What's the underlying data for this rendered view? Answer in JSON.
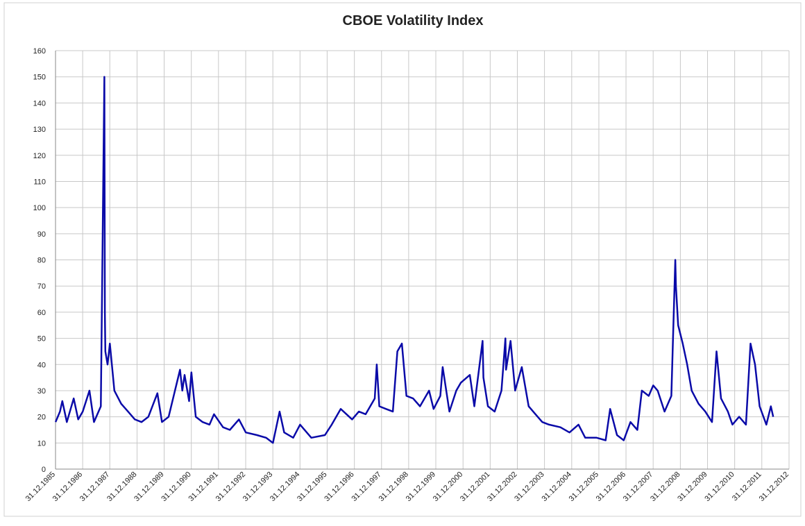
{
  "chart_data": {
    "type": "line",
    "title": "CBOE Volatility Index",
    "color": "#0a0aa8",
    "grid": true,
    "x": [
      "1986-01",
      "1986-03",
      "1986-04",
      "1986-06",
      "1986-09",
      "1986-11",
      "1987-01",
      "1987-04",
      "1987-06",
      "1987-09",
      "1987-10-19",
      "1987-10-25",
      "1987-11",
      "1987-12",
      "1988-01",
      "1988-03",
      "1988-06",
      "1988-09",
      "1988-12",
      "1989-03",
      "1989-06",
      "1989-10",
      "1989-12",
      "1990-03",
      "1990-08",
      "1990-09",
      "1990-10",
      "1990-12",
      "1991-01",
      "1991-03",
      "1991-06",
      "1991-09",
      "1991-11",
      "1992-03",
      "1992-06",
      "1992-10",
      "1993-01",
      "1993-06",
      "1993-10",
      "1994-01",
      "1994-04",
      "1994-06",
      "1994-10",
      "1995-01",
      "1995-06",
      "1995-12",
      "1996-03",
      "1996-07",
      "1996-12",
      "1997-03",
      "1997-06",
      "1997-10",
      "1997-10-28",
      "1997-12",
      "1998-03",
      "1998-06",
      "1998-08",
      "1998-10",
      "1998-12",
      "1999-03",
      "1999-06",
      "1999-10",
      "1999-12",
      "2000-03",
      "2000-04",
      "2000-07",
      "2000-10",
      "2000-12",
      "2001-04",
      "2001-06",
      "2001-09-20",
      "2001-10",
      "2001-12",
      "2002-03",
      "2002-06",
      "2002-07-24",
      "2002-08",
      "2002-10",
      "2002-12",
      "2003-03",
      "2003-06",
      "2003-09",
      "2003-12",
      "2004-03",
      "2004-08",
      "2004-12",
      "2005-04",
      "2005-07",
      "2005-12",
      "2006-04",
      "2006-06",
      "2006-09",
      "2006-12",
      "2007-03",
      "2007-06",
      "2007-08",
      "2007-11",
      "2008-01",
      "2008-03",
      "2008-06",
      "2008-09",
      "2008-10-24",
      "2008-11",
      "2008-12",
      "2009-02",
      "2009-04",
      "2009-06",
      "2009-09",
      "2009-12",
      "2010-03",
      "2010-05",
      "2010-07",
      "2010-10",
      "2010-12",
      "2011-03",
      "2011-06",
      "2011-08",
      "2011-10",
      "2011-12",
      "2012-03",
      "2012-05",
      "2012-06"
    ],
    "values": [
      18,
      22,
      26,
      18,
      27,
      19,
      22,
      30,
      18,
      24,
      150,
      60,
      45,
      40,
      48,
      30,
      25,
      22,
      19,
      18,
      20,
      29,
      18,
      20,
      38,
      30,
      36,
      26,
      37,
      20,
      18,
      17,
      21,
      16,
      15,
      19,
      14,
      13,
      12,
      10,
      22,
      14,
      12,
      17,
      12,
      13,
      17,
      23,
      19,
      22,
      21,
      27,
      40,
      24,
      23,
      22,
      45,
      48,
      28,
      27,
      24,
      30,
      23,
      28,
      39,
      22,
      30,
      33,
      36,
      24,
      49,
      35,
      24,
      22,
      30,
      50,
      38,
      49,
      30,
      39,
      24,
      21,
      18,
      17,
      16,
      14,
      17,
      12,
      12,
      11,
      23,
      13,
      11,
      18,
      15,
      30,
      28,
      32,
      30,
      22,
      28,
      80,
      70,
      55,
      48,
      40,
      30,
      25,
      22,
      18,
      45,
      27,
      22,
      17,
      20,
      17,
      48,
      40,
      24,
      17,
      24,
      20
    ],
    "ylim": [
      0,
      160
    ],
    "yticks": [
      0,
      10,
      20,
      30,
      40,
      50,
      60,
      70,
      80,
      90,
      100,
      110,
      120,
      130,
      140,
      150,
      160
    ],
    "xlim": [
      "1985-12-31",
      "2012-12-31"
    ],
    "xticks": [
      {
        "value": "1985-12-31",
        "label": "31.12.1985"
      },
      {
        "value": "1986-12-31",
        "label": "31.12.1986"
      },
      {
        "value": "1987-12-31",
        "label": "31.12.1987"
      },
      {
        "value": "1988-12-31",
        "label": "31.12.1988"
      },
      {
        "value": "1989-12-31",
        "label": "31.12.1989"
      },
      {
        "value": "1990-12-31",
        "label": "31.12.1990"
      },
      {
        "value": "1991-12-31",
        "label": "31.12.1991"
      },
      {
        "value": "1992-12-31",
        "label": "31.12.1992"
      },
      {
        "value": "1993-12-31",
        "label": "31.12.1993"
      },
      {
        "value": "1994-12-31",
        "label": "31.12.1994"
      },
      {
        "value": "1995-12-31",
        "label": "31.12.1995"
      },
      {
        "value": "1996-12-31",
        "label": "31.12.1996"
      },
      {
        "value": "1997-12-31",
        "label": "31.12.1997"
      },
      {
        "value": "1998-12-31",
        "label": "31.12.1998"
      },
      {
        "value": "1999-12-31",
        "label": "31.12.1999"
      },
      {
        "value": "2000-12-31",
        "label": "31.12.2000"
      },
      {
        "value": "2001-12-31",
        "label": "31.12.2001"
      },
      {
        "value": "2002-12-31",
        "label": "31.12.2002"
      },
      {
        "value": "2003-12-31",
        "label": "31.12.2003"
      },
      {
        "value": "2004-12-31",
        "label": "31.12.2004"
      },
      {
        "value": "2005-12-31",
        "label": "31.12.2005"
      },
      {
        "value": "2006-12-31",
        "label": "31.12.2006"
      },
      {
        "value": "2007-12-31",
        "label": "31.12.2007"
      },
      {
        "value": "2008-12-31",
        "label": "31.12.2008"
      },
      {
        "value": "2009-12-31",
        "label": "31.12.2009"
      },
      {
        "value": "2010-12-31",
        "label": "31.12.2010"
      },
      {
        "value": "2011-12-31",
        "label": "31.12.2011"
      },
      {
        "value": "2012-12-31",
        "label": "31.12.2012"
      }
    ]
  }
}
